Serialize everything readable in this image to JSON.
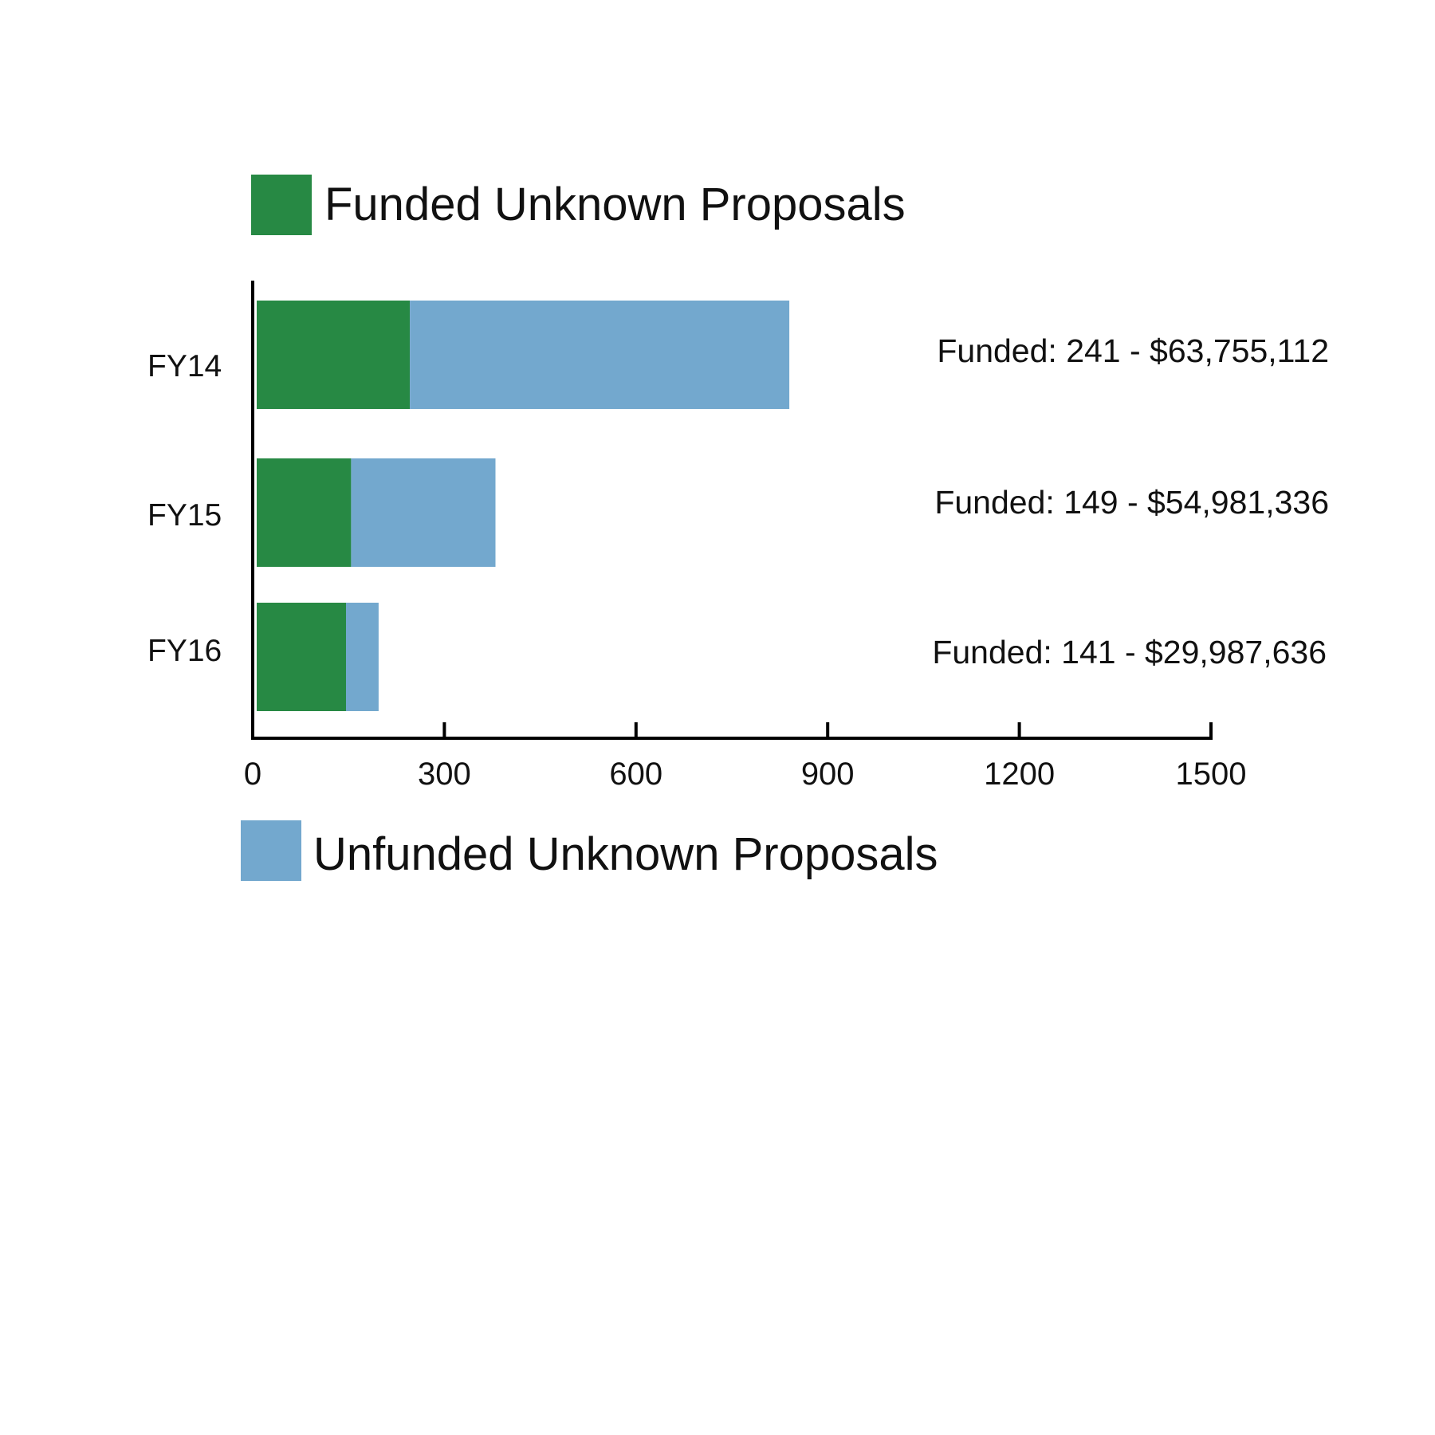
{
  "chart_data": {
    "type": "bar",
    "orientation": "horizontal",
    "stacked": true,
    "categories": [
      "FY14",
      "FY15",
      "FY16"
    ],
    "series": [
      {
        "name": "Funded Unknown Proposals",
        "values": [
          241,
          149,
          141
        ],
        "color": "#278944"
      },
      {
        "name": "Unfunded Unknown Proposals",
        "values": [
          594,
          226,
          51
        ],
        "color": "#73a8ce"
      }
    ],
    "annotations": [
      "Funded: 241 - $63,755,112",
      "Funded: 149 - $54,981,336",
      "Funded: 141 - $29,987,636"
    ],
    "xticks": [
      "0",
      "300",
      "600",
      "900",
      "1200",
      "1500"
    ],
    "xlim": [
      0,
      1500
    ],
    "grid": false,
    "legend_placement": "top and bottom"
  }
}
